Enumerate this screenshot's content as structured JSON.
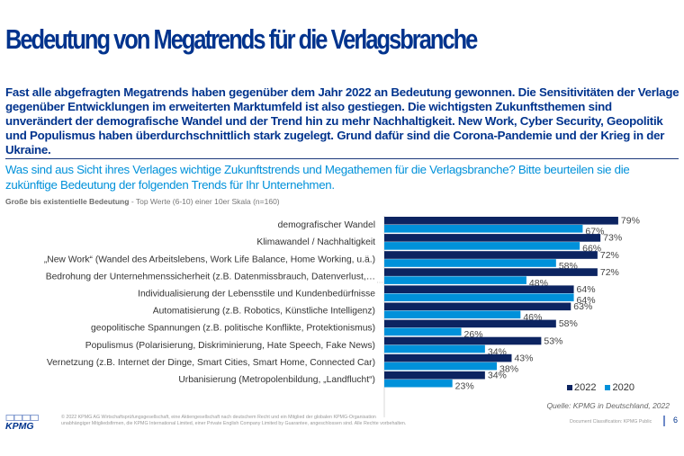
{
  "header": {
    "title": "Bedeutung von Megatrends für die Verlagsbranche"
  },
  "summary": "Fast alle abgefragten Megatrends haben gegenüber dem Jahr 2022 an Bedeutung gewonnen. Die Sensitivitäten der Verlage gegenüber Entwicklungen im erweiterten Marktumfeld ist also gestiegen. Die wichtigsten Zukunftsthemen sind unverändert der demografische Wandel und der Trend hin zu mehr Nachhaltigkeit. New Work, Cyber Security, Geopolitik und Populismus haben überdurchschnittlich stark zugelegt. Grund dafür sind die Corona-Pandemie und der Krieg in der Ukraine.",
  "question": "Was sind aus Sicht ihres Verlages wichtige Zukunftstrends und Megathemen für die Verlagsbranche? Bitte beurteilen sie die zukünftige Bedeutung der folgenden Trends für Ihr Unternehmen.",
  "subtitle": {
    "bold": "Große bis existentielle Bedeutung",
    "rest": " - Top Werte (6-10)  einer  10er Skala (n=160)"
  },
  "colors": {
    "brand": "#00338D",
    "accent": "#0091DA",
    "series_2022": "#0C2461",
    "series_2020": "#0091DA"
  },
  "chart_data": {
    "type": "bar",
    "orientation": "horizontal",
    "title": "",
    "xlabel": "",
    "ylabel": "",
    "xlim": [
      0,
      100
    ],
    "grid": false,
    "legend_position": "bottom-right",
    "value_format": "percent",
    "categories": [
      "demografischer Wandel",
      "Klimawandel / Nachhaltigkeit",
      "„New Work“ (Wandel des Arbeitslebens, Work Life Balance, Home Working, u.ä.)",
      "Bedrohung der Unternehmenssicherheit (z.B. Datenmissbrauch, Datenverlust,…",
      "Individualisierung der Lebensstile und Kundenbedürfnisse",
      "Automatisierung (z.B. Robotics, Künstliche Intelligenz)",
      "geopolitische Spannungen (z.B. politische Konflikte, Protektionismus)",
      "Populismus (Polarisierung, Diskriminierung, Hate Speech, Fake News)",
      "Vernetzung (z.B. Internet der Dinge, Smart Cities, Smart Home, Connected Car)",
      "Urbanisierung  (Metropolenbildung,  „Landflucht“)"
    ],
    "series": [
      {
        "name": "2022",
        "color": "#0C2461",
        "values": [
          79,
          73,
          72,
          72,
          64,
          63,
          58,
          53,
          43,
          34
        ]
      },
      {
        "name": "2020",
        "color": "#0091DA",
        "values": [
          67,
          66,
          58,
          48,
          64,
          46,
          26,
          34,
          38,
          23
        ]
      }
    ]
  },
  "footer": {
    "source": "Quelle: KPMG in Deutschland, 2022",
    "logo_text": "KPMG",
    "copyright_line1": "© 2022  KPMG AG Wirtschaftsprüfungsgesellschaft,   eine  Aktiengesellschaft  nach deutschem   Recht und ein Mitglied der globalen  KPMG-Organisation",
    "copyright_line2": "unabhängiger   Mitgliedsfirmen, die KPMG International  Limited,  einer  Private English  Company Limited by Guarantee,  angeschlossen   sind.  Alle Rechte  vorbehalten.",
    "classification": "Document  Classification:  KPMG Public",
    "page_number": "6"
  }
}
